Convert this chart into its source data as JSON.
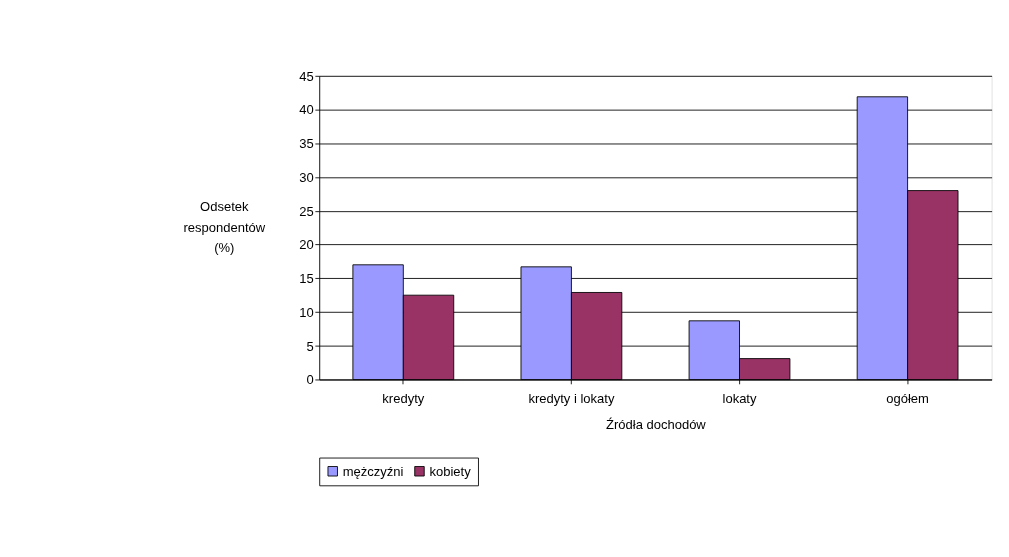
{
  "chart_data": {
    "type": "bar",
    "xlabel": "Źródła dochodów",
    "ylabel": [
      "Odsetek",
      "respondentów",
      "(%)"
    ],
    "categories": [
      "kredyty",
      "kredyty i lokaty",
      "lokaty",
      "ogółem"
    ],
    "series": [
      {
        "name": "mężczyźni",
        "color": "#9999ff",
        "values": [
          17.0,
          16.7,
          8.7,
          41.9
        ]
      },
      {
        "name": "kobiety",
        "color": "#993366",
        "values": [
          12.5,
          12.9,
          3.1,
          28.0
        ]
      }
    ],
    "ylim": [
      0,
      45
    ],
    "yticks": [
      0,
      5,
      10,
      15,
      20,
      25,
      30,
      35,
      40,
      45
    ],
    "grid": "y",
    "legend": "bottom"
  }
}
